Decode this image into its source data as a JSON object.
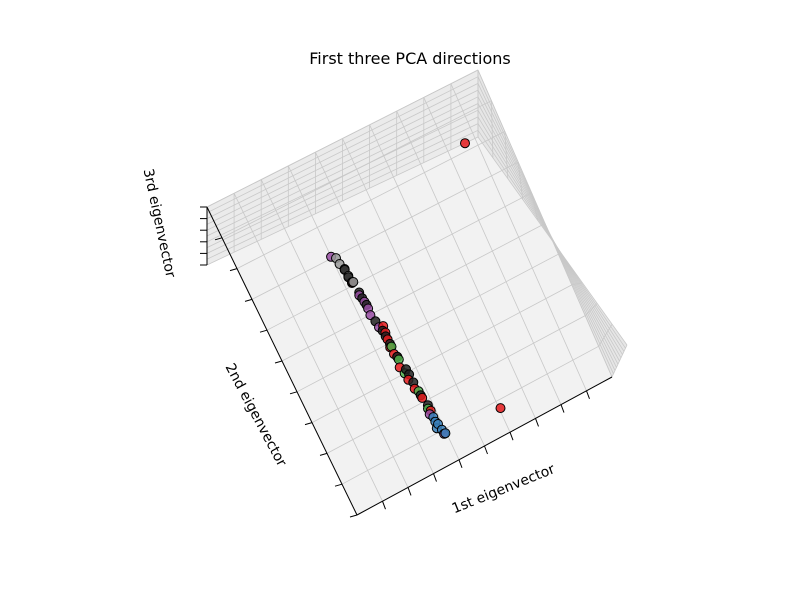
{
  "chart_data": {
    "type": "scatter",
    "title": "First three PCA directions",
    "xlabel": "1st eigenvector",
    "ylabel": "2nd eigenvector",
    "zlabel": "3rd eigenvector",
    "projection": "3d",
    "tick_labels_hidden": true,
    "grid": true,
    "series": [
      {
        "color": "#e41a1c",
        "values": [
          [
            -0.3,
            -0.2,
            0.1
          ],
          [
            -0.29,
            -0.28,
            0.05
          ],
          [
            -0.28,
            -0.1,
            0.0
          ],
          [
            -0.31,
            -0.35,
            -0.05
          ],
          [
            -0.27,
            -0.05,
            0.12
          ],
          [
            -0.3,
            -0.45,
            0.0
          ],
          [
            -0.29,
            -0.15,
            -0.08
          ],
          [
            -0.28,
            -0.6,
            0.05
          ],
          [
            -0.3,
            -0.25,
            0.15
          ],
          [
            -0.27,
            -0.7,
            -0.02
          ],
          [
            -0.31,
            0.3,
            0.06
          ],
          [
            -0.29,
            -0.52,
            -0.1
          ],
          [
            0.85,
            0.9,
            0.55
          ],
          [
            0.15,
            -0.9,
            -0.05
          ]
        ]
      },
      {
        "color": "#377eb8",
        "values": [
          [
            -0.28,
            -0.78,
            0.0
          ],
          [
            -0.27,
            -0.85,
            0.05
          ],
          [
            -0.29,
            -0.82,
            -0.05
          ],
          [
            -0.26,
            -0.88,
            0.02
          ],
          [
            -0.28,
            -0.75,
            0.08
          ],
          [
            -0.27,
            -0.8,
            -0.03
          ]
        ]
      },
      {
        "color": "#4daf4a",
        "values": [
          [
            -0.29,
            -0.3,
            0.02
          ],
          [
            -0.28,
            -0.55,
            0.06
          ],
          [
            -0.3,
            -0.4,
            -0.04
          ],
          [
            -0.28,
            -0.68,
            0.0
          ],
          [
            -0.29,
            -0.2,
            0.08
          ]
        ]
      },
      {
        "color": "#984ea3",
        "values": [
          [
            -0.31,
            0.05,
            0.02
          ],
          [
            -0.3,
            0.15,
            0.06
          ],
          [
            -0.3,
            -0.05,
            -0.02
          ],
          [
            -0.29,
            -0.72,
            0.04
          ],
          [
            -0.31,
            0.2,
            0.0
          ],
          [
            -0.3,
            0.1,
            0.08
          ],
          [
            -0.27,
            -0.88,
            0.03
          ],
          [
            -0.33,
            0.55,
            0.3
          ]
        ]
      },
      {
        "color": "#999999",
        "values": [
          [
            -0.32,
            0.45,
            0.05
          ],
          [
            -0.31,
            0.35,
            0.02
          ],
          [
            -0.32,
            0.5,
            0.08
          ],
          [
            -0.31,
            0.4,
            0.0
          ],
          [
            -0.3,
            0.3,
            0.04
          ]
        ]
      },
      {
        "color": "#222222",
        "values": [
          [
            -0.31,
            0.4,
            0.05
          ],
          [
            -0.31,
            0.3,
            0.0
          ],
          [
            -0.3,
            0.22,
            0.04
          ],
          [
            -0.3,
            0.12,
            -0.02
          ],
          [
            -0.3,
            0.0,
            0.06
          ],
          [
            -0.29,
            -0.08,
            0.02
          ],
          [
            -0.29,
            -0.18,
            0.05
          ],
          [
            -0.29,
            -0.28,
            -0.03
          ],
          [
            -0.28,
            -0.38,
            0.04
          ],
          [
            -0.28,
            -0.48,
            0.0
          ],
          [
            -0.28,
            -0.58,
            0.05
          ],
          [
            -0.27,
            -0.66,
            0.02
          ],
          [
            -0.31,
            0.35,
            0.1
          ],
          [
            -0.3,
            0.18,
            0.08
          ],
          [
            -0.29,
            -0.12,
            0.1
          ],
          [
            -0.28,
            -0.42,
            0.09
          ]
        ]
      }
    ]
  }
}
